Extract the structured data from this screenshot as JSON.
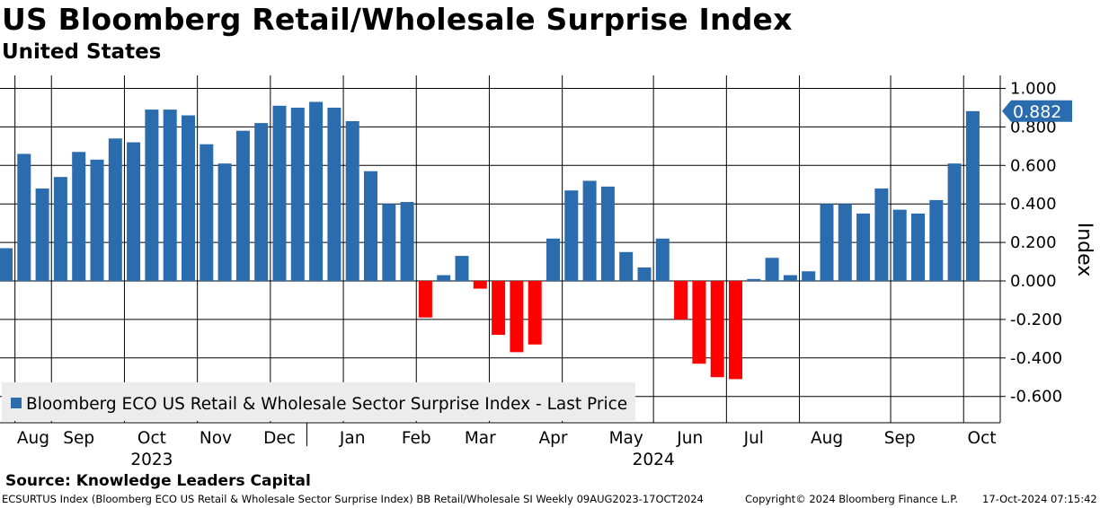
{
  "header": {
    "title": "US Bloomberg Retail/Wholesale Surprise Index",
    "subtitle": "United States"
  },
  "source": "Source: Knowledge Leaders Capital",
  "footer": {
    "left": "ECSURTUS Index (Bloomberg ECO US Retail & Wholesale Sector Surprise Index) BB Retail/Wholesale SI  Weekly 09AUG2023-17OCT2024",
    "copyright": "Copyright© 2024 Bloomberg Finance L.P.",
    "timestamp": "17-Oct-2024 07:15:42"
  },
  "colors": {
    "positive": "#2b6cae",
    "negative": "#ff0000",
    "badge": "#2b6cae",
    "grid": "#000000"
  },
  "chart_data": {
    "type": "bar",
    "title": "US Bloomberg Retail/Wholesale Surprise Index",
    "ylabel": "Index",
    "ylim": [
      -0.7,
      1.05
    ],
    "yticks": [
      "1.000",
      "0.800",
      "0.600",
      "0.400",
      "0.200",
      "0.000",
      "-0.200",
      "-0.400",
      "-0.600"
    ],
    "ytick_values": [
      1.0,
      0.8,
      0.6,
      0.4,
      0.2,
      0.0,
      -0.2,
      -0.4,
      -0.6
    ],
    "values": [
      0.17,
      0.66,
      0.48,
      0.54,
      0.67,
      0.63,
      0.74,
      0.72,
      0.89,
      0.89,
      0.86,
      0.71,
      0.61,
      0.78,
      0.82,
      0.91,
      0.9,
      0.93,
      0.9,
      0.83,
      0.57,
      0.4,
      0.41,
      -0.19,
      0.03,
      0.13,
      -0.04,
      -0.28,
      -0.37,
      -0.33,
      0.22,
      0.47,
      0.52,
      0.49,
      0.15,
      0.07,
      0.22,
      -0.2,
      -0.43,
      -0.5,
      -0.51,
      0.01,
      0.12,
      0.03,
      0.05,
      0.4,
      0.4,
      0.35,
      0.48,
      0.37,
      0.35,
      0.42,
      0.61,
      0.882
    ],
    "month_labels": [
      "Aug",
      "Sep",
      "Oct",
      "Nov",
      "Dec",
      "Jan",
      "Feb",
      "Mar",
      "Apr",
      "May",
      "Jun",
      "Jul",
      "Aug",
      "Sep",
      "Oct"
    ],
    "month_label_week": [
      1.5,
      4.0,
      8.0,
      11.5,
      15.0,
      19.0,
      22.5,
      26.0,
      30.0,
      34.0,
      37.5,
      41.0,
      45.0,
      49.0,
      53.5
    ],
    "month_gridline_week": [
      0.5,
      2.5,
      6.5,
      10.5,
      14.5,
      18.5,
      22.5,
      26.5,
      30.5,
      35.5,
      39.5,
      43.5,
      48.5,
      52.5
    ],
    "year_labels": [
      {
        "label": "2023",
        "week": 8.0
      },
      {
        "label": "2024",
        "week": 35.5
      }
    ],
    "year_divider_week": 16.5,
    "legend": {
      "label": "Bloomberg ECO US Retail & Wholesale Sector Surprise Index - Last Price",
      "position": "bottom-left"
    },
    "last_value_label": "0.882",
    "last_value": 0.882
  }
}
